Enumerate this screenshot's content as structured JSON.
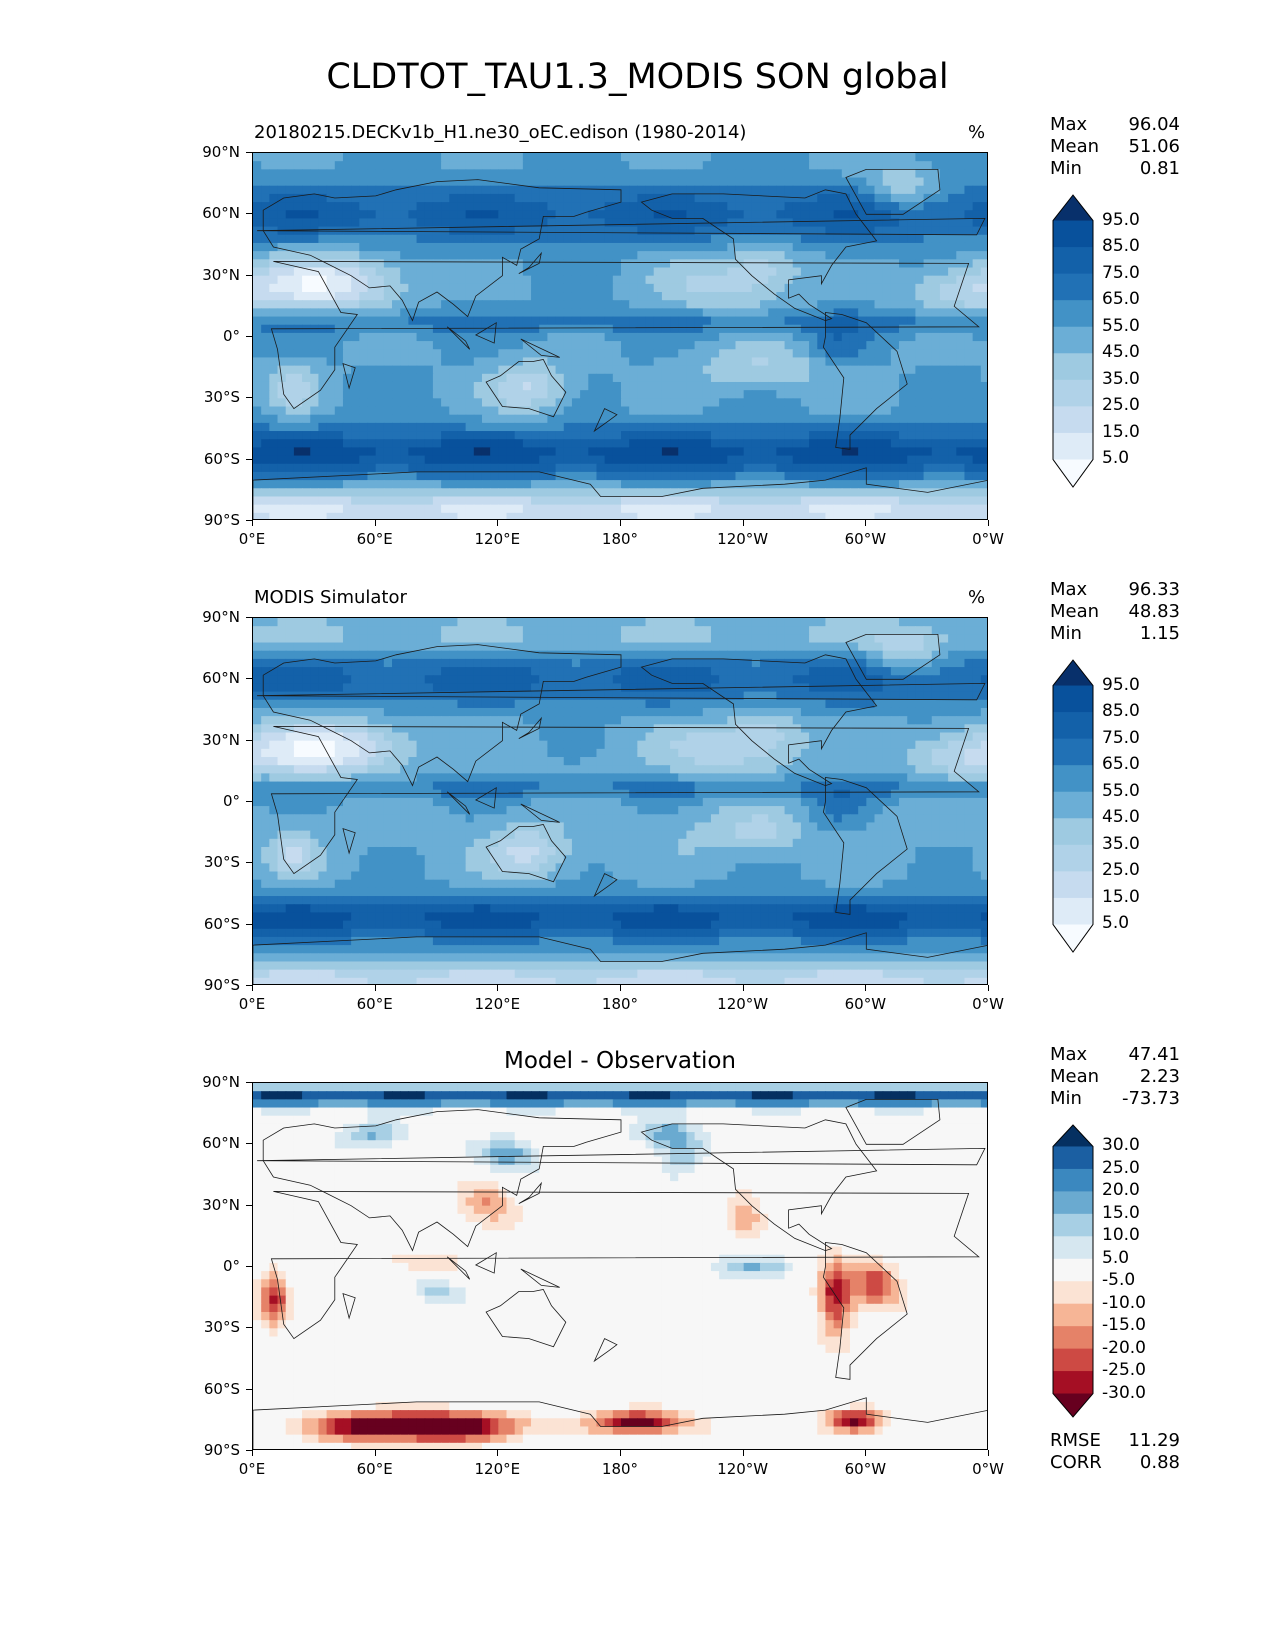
{
  "figure_title": "CLDTOT_TAU1.3_MODIS SON global",
  "axes": {
    "lat_ticks": [
      "90°N",
      "60°N",
      "30°N",
      "0°",
      "30°S",
      "60°S",
      "90°S"
    ],
    "lon_ticks": [
      "0°E",
      "60°E",
      "120°E",
      "180°",
      "120°W",
      "60°W",
      "0°W"
    ]
  },
  "colors": {
    "blues": [
      "#f7fbff",
      "#deebf7",
      "#c6dbef",
      "#b0d2e8",
      "#9ecae1",
      "#6baed6",
      "#4292c6",
      "#2171b5",
      "#1361a9",
      "#08519c",
      "#08306b"
    ],
    "diverging": [
      "#67001f",
      "#a50f24",
      "#cd4a44",
      "#e58268",
      "#f6b596",
      "#fbe3d4",
      "#f7f7f7",
      "#d6e7f0",
      "#a7cfe4",
      "#6aaad0",
      "#3b88bf",
      "#1b5fa2",
      "#053061"
    ]
  },
  "chart_data": [
    {
      "type": "heatmap",
      "title": "20180215.DECKv1b_H1.ne30_oEC.edison (1980-2014)",
      "units": "%",
      "stats": [
        {
          "label": "Max",
          "value": "96.04"
        },
        {
          "label": "Mean",
          "value": "51.06"
        },
        {
          "label": "Min",
          "value": "0.81"
        }
      ],
      "colorbar_labels": [
        "95.0",
        "85.0",
        "75.0",
        "65.0",
        "55.0",
        "45.0",
        "35.0",
        "25.0",
        "15.0",
        "5.0"
      ],
      "xlim": [
        0,
        360
      ],
      "ylim": [
        -90,
        90
      ],
      "field": "model"
    },
    {
      "type": "heatmap",
      "title": "MODIS Simulator",
      "units": "%",
      "stats": [
        {
          "label": "Max",
          "value": "96.33"
        },
        {
          "label": "Mean",
          "value": "48.83"
        },
        {
          "label": "Min",
          "value": "1.15"
        }
      ],
      "colorbar_labels": [
        "95.0",
        "85.0",
        "75.0",
        "65.0",
        "55.0",
        "45.0",
        "35.0",
        "25.0",
        "15.0",
        "5.0"
      ],
      "xlim": [
        0,
        360
      ],
      "ylim": [
        -90,
        90
      ],
      "field": "obs"
    },
    {
      "type": "heatmap",
      "title": "Model - Observation",
      "units": "",
      "stats": [
        {
          "label": "Max",
          "value": "47.41"
        },
        {
          "label": "Mean",
          "value": "2.23"
        },
        {
          "label": "Min",
          "value": "-73.73"
        }
      ],
      "extra_stats": [
        {
          "label": "RMSE",
          "value": "11.29"
        },
        {
          "label": "CORR",
          "value": "0.88"
        }
      ],
      "colorbar_labels": [
        "30.0",
        "25.0",
        "20.0",
        "15.0",
        "10.0",
        "5.0",
        "-5.0",
        "-10.0",
        "-15.0",
        "-20.0",
        "-25.0",
        "-30.0"
      ],
      "xlim": [
        0,
        360
      ],
      "ylim": [
        -90,
        90
      ],
      "field": "diff"
    }
  ]
}
